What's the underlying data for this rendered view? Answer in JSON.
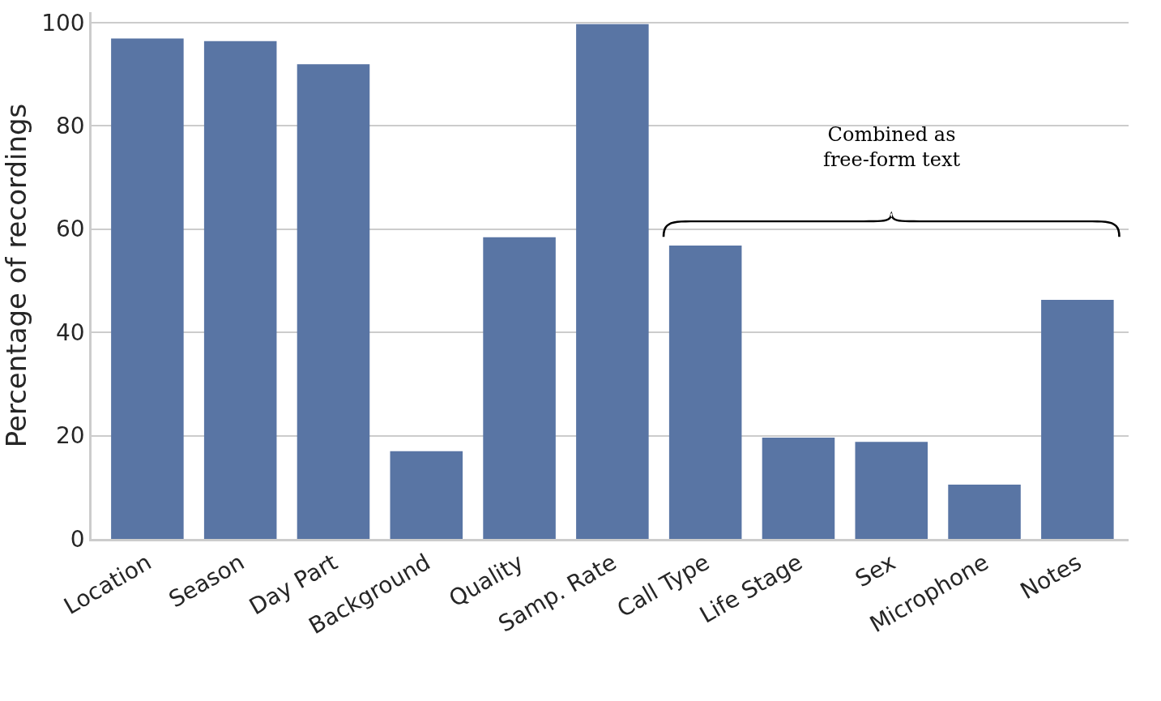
{
  "chart_data": {
    "type": "bar",
    "ylabel": "Percentage of recordings",
    "categories": [
      "Location",
      "Season",
      "Day Part",
      "Background",
      "Quality",
      "Samp. Rate",
      "Call Type",
      "Life Stage",
      "Sex",
      "Microphone",
      "Notes"
    ],
    "values": [
      96.9,
      96.4,
      91.9,
      17.0,
      58.4,
      99.7,
      56.8,
      19.6,
      18.8,
      10.5,
      46.3
    ],
    "color": "#5975a4",
    "ylim": [
      0,
      102
    ],
    "yticks": [
      0,
      20,
      40,
      60,
      80,
      100
    ],
    "grid": "y",
    "annotations": [
      "Combined as\nfree-form text"
    ]
  }
}
